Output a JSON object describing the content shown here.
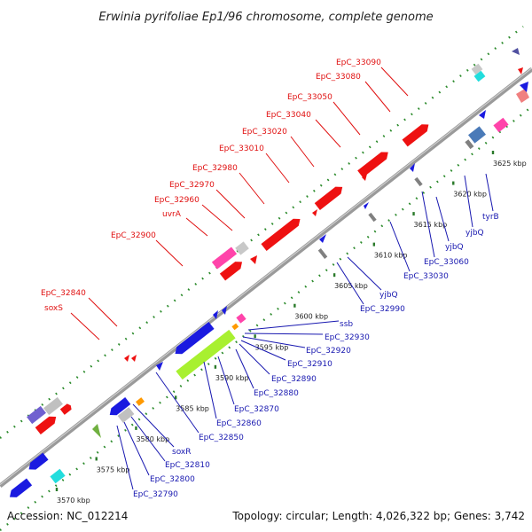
{
  "title": "Erwinia pyrifoliae Ep1/96 chromosome, complete genome",
  "footer": {
    "accession": "Accession: NC_012214",
    "summary": "Topology: circular; Length: 4,026,322 bp; Genes: 3,742"
  },
  "colors": {
    "backbone": "#9a9a9a",
    "forward_gene": "#ee1111",
    "reverse_gene": "#1a1ae0",
    "forward_label": "#e01010",
    "reverse_label": "#1818b0",
    "guide_dots": "#2a8a2a",
    "ticks": "#2a7a2a",
    "rrna": "#a8f030",
    "trna": "#ff9900",
    "other": "#a0a0a0",
    "pink": "#ff44aa",
    "purple": "#7060d0",
    "cyan": "#22dddd"
  },
  "axis": {
    "ticks": [
      {
        "kbp": 3570,
        "label": "3570 kbp"
      },
      {
        "kbp": 3575,
        "label": "3575 kbp"
      },
      {
        "kbp": 3580,
        "label": "3580 kbp"
      },
      {
        "kbp": 3585,
        "label": "3585 kbp"
      },
      {
        "kbp": 3590,
        "label": "3590 kbp"
      },
      {
        "kbp": 3595,
        "label": "3595 kbp"
      },
      {
        "kbp": 3600,
        "label": "3600 kbp"
      },
      {
        "kbp": 3605,
        "label": "3605 kbp"
      },
      {
        "kbp": 3610,
        "label": "3610 kbp"
      },
      {
        "kbp": 3615,
        "label": "3615 kbp"
      },
      {
        "kbp": 3620,
        "label": "3620 kbp"
      },
      {
        "kbp": 3625,
        "label": "3625 kbp"
      }
    ]
  },
  "forward_labels": [
    "EpC_33090",
    "EpC_33080",
    "EpC_33050",
    "EpC_33040",
    "EpC_33020",
    "EpC_33010",
    "EpC_32980",
    "EpC_32970",
    "EpC_32960",
    "uvrA",
    "EpC_32900",
    "EpC_32840",
    "soxS"
  ],
  "reverse_labels": [
    "tyrB",
    "yjbQ",
    "yjbQ",
    "EpC_33060",
    "EpC_33030",
    "yjbQ",
    "EpC_32990",
    "ssb",
    "EpC_32930",
    "EpC_32920",
    "EpC_32910",
    "EpC_32890",
    "EpC_32880",
    "EpC_32870",
    "EpC_32860",
    "EpC_32850",
    "soxR",
    "EpC_32810",
    "EpC_32800",
    "EpC_32790"
  ]
}
